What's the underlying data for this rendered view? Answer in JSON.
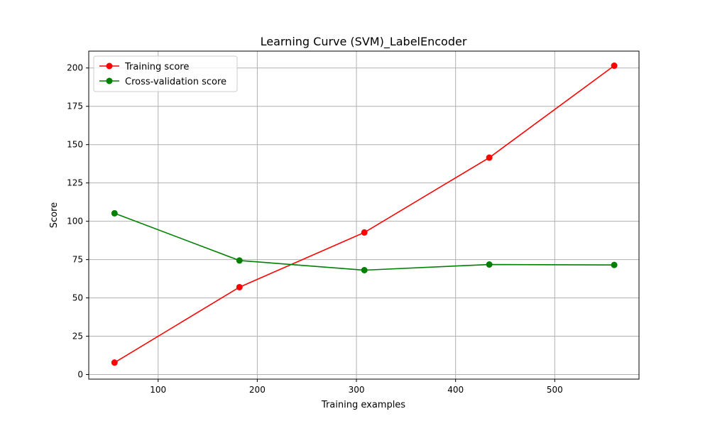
{
  "chart_data": {
    "type": "line",
    "title": "Learning Curve (SVM)_LabelEncoder",
    "xlabel": "Training examples",
    "ylabel": "Score",
    "xlim": [
      30,
      585
    ],
    "ylim": [
      -3,
      211
    ],
    "xticks": [
      100,
      200,
      300,
      400,
      500
    ],
    "yticks": [
      0,
      25,
      50,
      75,
      100,
      125,
      150,
      175,
      200
    ],
    "grid": true,
    "legend_position": "top-left",
    "x": [
      56,
      182,
      308,
      434,
      560
    ],
    "series": [
      {
        "name": "Training score",
        "color": "#ff0000",
        "marker": "circle",
        "values": [
          7.8,
          57.0,
          92.7,
          141.5,
          201.5
        ]
      },
      {
        "name": "Cross-validation score",
        "color": "#008000",
        "marker": "circle",
        "values": [
          105.2,
          74.4,
          68.1,
          71.8,
          71.5
        ]
      }
    ]
  }
}
